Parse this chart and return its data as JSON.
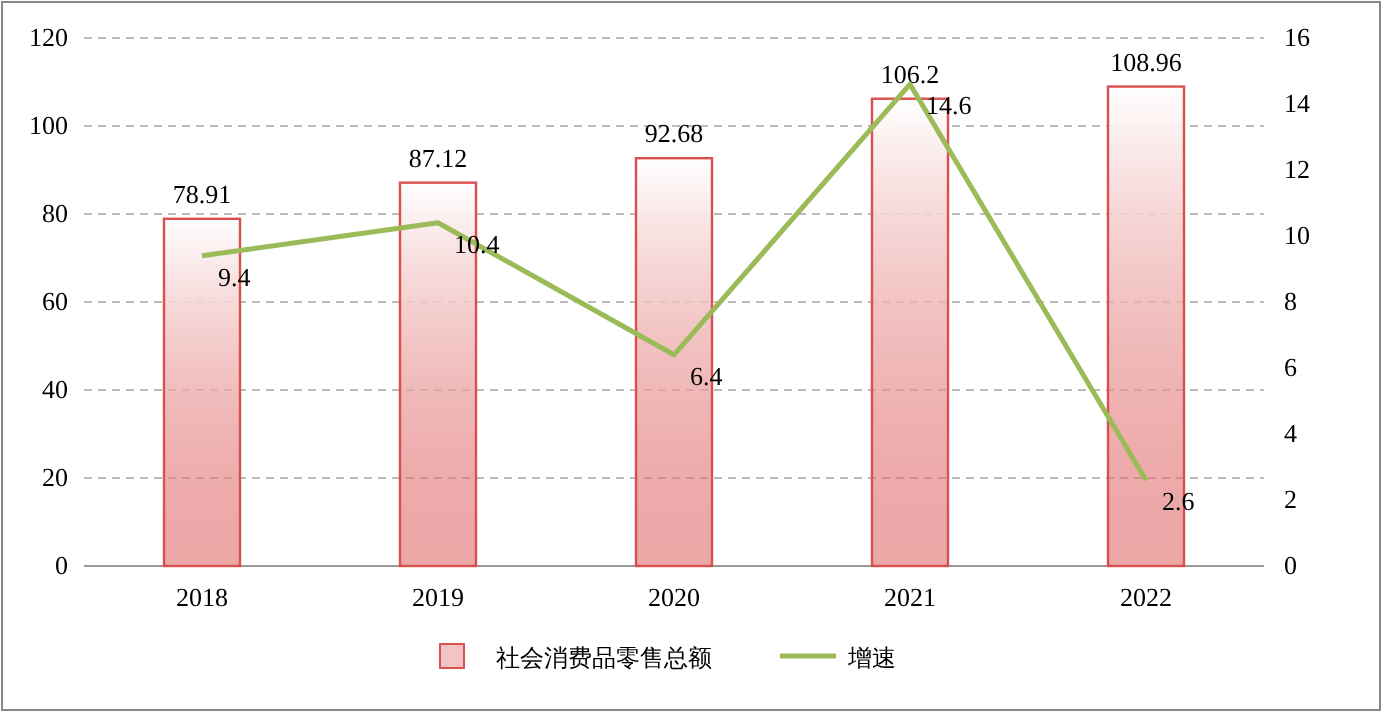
{
  "chart_data": {
    "type": "bar",
    "categories": [
      "2018",
      "2019",
      "2020",
      "2021",
      "2022"
    ],
    "series": [
      {
        "name": "社会消费品零售总额",
        "color": "#d9504f",
        "values": [
          78.91,
          87.12,
          92.68,
          106.2,
          108.96
        ]
      },
      {
        "name": "增速",
        "type": "line",
        "axis": "y2",
        "color": "#9bbb59",
        "values": [
          9.4,
          10.4,
          6.4,
          14.6,
          2.6
        ]
      }
    ],
    "ylim": [
      0,
      120
    ],
    "yticks": [
      0,
      20,
      40,
      60,
      80,
      100,
      120
    ],
    "y2lim": [
      0,
      16
    ],
    "y2ticks": [
      0,
      2,
      4,
      6,
      8,
      10,
      12,
      14,
      16
    ],
    "grid": "y",
    "legend": "bottom",
    "data_labels": true
  }
}
